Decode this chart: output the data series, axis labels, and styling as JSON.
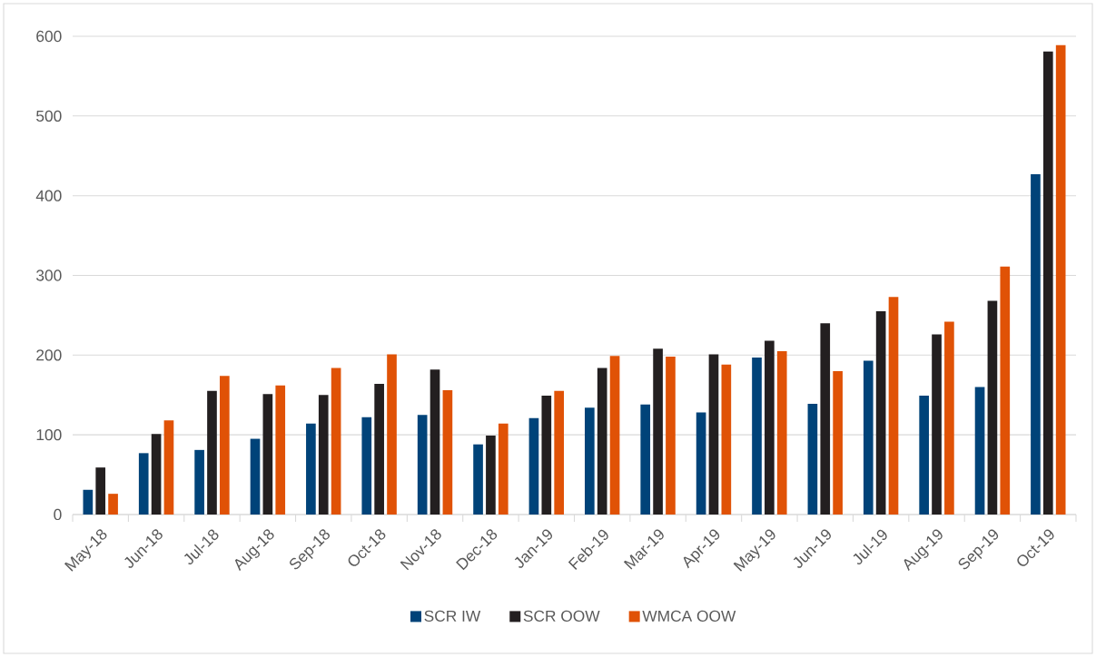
{
  "chart_data": {
    "type": "bar",
    "categories": [
      "May-18",
      "Jun-18",
      "Jul-18",
      "Aug-18",
      "Sep-18",
      "Oct-18",
      "Nov-18",
      "Dec-18",
      "Jan-19",
      "Feb-19",
      "Mar-19",
      "Apr-19",
      "May-19",
      "Jun-19",
      "Jul-19",
      "Aug-19",
      "Sep-19",
      "Oct-19"
    ],
    "series": [
      {
        "name": "SCR IW",
        "color": "#004379",
        "values": [
          31,
          77,
          81,
          95,
          114,
          122,
          125,
          88,
          121,
          134,
          138,
          128,
          197,
          139,
          193,
          149,
          160,
          427
        ]
      },
      {
        "name": "SCR OOW",
        "color": "#231f20",
        "values": [
          59,
          101,
          155,
          151,
          150,
          164,
          182,
          99,
          149,
          184,
          208,
          201,
          218,
          240,
          255,
          226,
          268,
          581
        ]
      },
      {
        "name": "WMCA OOW",
        "color": "#e05206",
        "values": [
          26,
          118,
          174,
          162,
          184,
          201,
          156,
          114,
          155,
          199,
          198,
          188,
          205,
          180,
          273,
          242,
          311,
          589
        ]
      }
    ],
    "ylim": [
      0,
      600
    ],
    "yticks": [
      0,
      100,
      200,
      300,
      400,
      500,
      600
    ],
    "grid": "y",
    "legend": "bottom"
  }
}
